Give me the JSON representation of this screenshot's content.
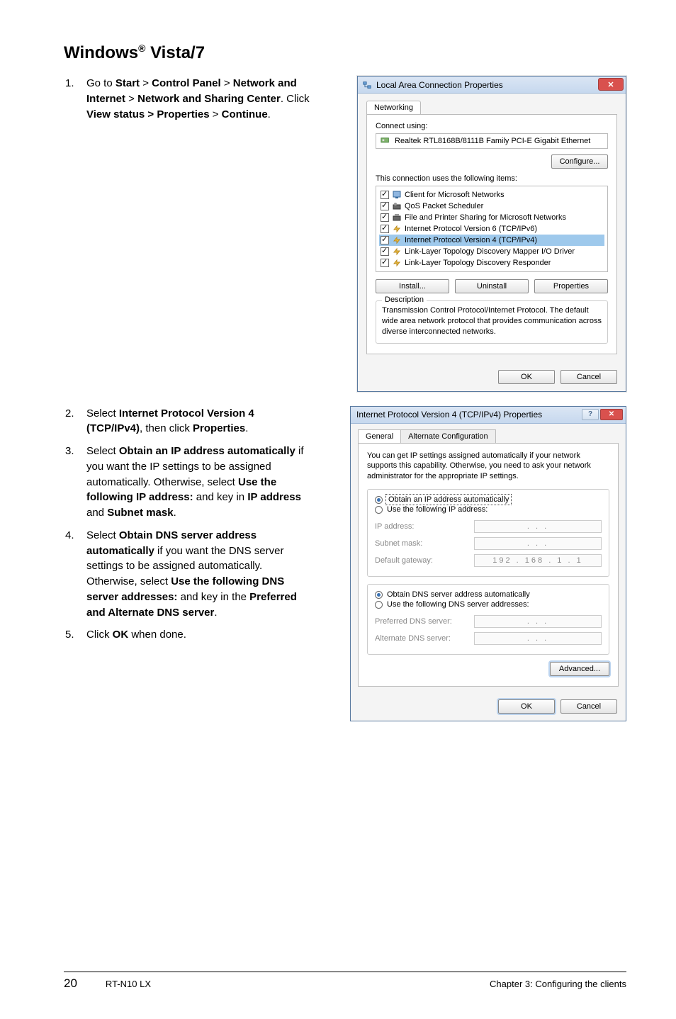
{
  "heading": {
    "prefix": "Windows",
    "suffix": " Vista/7"
  },
  "steps_block1": [
    "Go to <b>Start</b> > <b>Control Panel</b> > <b>Network and Internet</b> > <b>Network and Sharing Center</b>. Click <b>View status > Properties</b> > <b>Continue</b>."
  ],
  "steps_block2": [
    "Select <b>Internet Protocol Version 4 (TCP/IPv4)</b>, then click <b>Properties</b>.",
    "Select <b>Obtain an IP address automatically</b> if you want the IP settings to be assigned automatically. Otherwise, select <b>Use the following IP address:</b> and key in <b>IP address</b> and <b>Subnet mask</b>.",
    "Select <b>Obtain DNS server address automatically</b> if you want the DNS server settings to be assigned automatically. Otherwise, select <b>Use the following DNS server addresses:</b> and key in the <b>Preferred and Alternate DNS server</b>.",
    "Click <b>OK</b> when done."
  ],
  "dlg1": {
    "title": "Local Area Connection Properties",
    "tab": "Networking",
    "connect_using": "Connect using:",
    "adapter": "Realtek RTL8168B/8111B Family PCI-E Gigabit Ethernet",
    "configure_btn": "Configure...",
    "uses_label": "This connection uses the following items:",
    "items": [
      {
        "label": "Client for Microsoft Networks",
        "selected": false
      },
      {
        "label": "QoS Packet Scheduler",
        "selected": false
      },
      {
        "label": "File and Printer Sharing for Microsoft Networks",
        "selected": false
      },
      {
        "label": "Internet Protocol Version 6 (TCP/IPv6)",
        "selected": false
      },
      {
        "label": "Internet Protocol Version 4 (TCP/IPv4)",
        "selected": true
      },
      {
        "label": "Link-Layer Topology Discovery Mapper I/O Driver",
        "selected": false
      },
      {
        "label": "Link-Layer Topology Discovery Responder",
        "selected": false
      }
    ],
    "install_btn": "Install...",
    "uninstall_btn": "Uninstall",
    "properties_btn": "Properties",
    "desc_legend": "Description",
    "desc_text": "Transmission Control Protocol/Internet Protocol. The default wide area network protocol that provides communication across diverse interconnected networks.",
    "ok_btn": "OK",
    "cancel_btn": "Cancel"
  },
  "dlg2": {
    "title": "Internet Protocol Version 4 (TCP/IPv4) Properties",
    "tab_general": "General",
    "tab_alt": "Alternate Configuration",
    "intro": "You can get IP settings assigned automatically if your network supports this capability. Otherwise, you need to ask your network administrator for the appropriate IP settings.",
    "radio_obtain_ip": "Obtain an IP address automatically",
    "radio_use_ip": "Use the following IP address:",
    "ip_address_lbl": "IP address:",
    "subnet_lbl": "Subnet mask:",
    "gateway_lbl": "Default gateway:",
    "gateway_val": "192 . 168 .  1  .  1",
    "radio_obtain_dns": "Obtain DNS server address automatically",
    "radio_use_dns": "Use the following DNS server addresses:",
    "pref_dns_lbl": "Preferred DNS server:",
    "alt_dns_lbl": "Alternate DNS server:",
    "advanced_btn": "Advanced...",
    "ok_btn": "OK",
    "cancel_btn": "Cancel",
    "dots": ".     .     ."
  },
  "footer": {
    "page": "20",
    "product": "RT-N10 LX",
    "chapter": "Chapter 3: Configuring the clients"
  },
  "colors": {
    "title_grad_top": "#dbe6f4",
    "title_grad_bot": "#c6d8ee",
    "close_red": "#d9514e",
    "highlight_blue": "#9ec9ec"
  },
  "icons": {
    "network": "<svg viewBox='0 0 16 16'><rect x='2' y='3' width='5' height='4' fill='#6aa0d8' stroke='#336699'/><rect x='9' y='9' width='5' height='4' fill='#6aa0d8' stroke='#336699'/><path d='M4.5 7 V11 H9' stroke='#336699' fill='none'/></svg>",
    "nic": "<svg viewBox='0 0 16 12'><rect x='1' y='2' width='12' height='7' fill='#7fb36b' stroke='#46803a'/><rect x='3' y='4' width='3' height='3' fill='#ddd'/></svg>",
    "client": "<svg viewBox='0 0 14 14'><rect x='2' y='2' width='10' height='8' fill='#8fb6e0' stroke='#336699'/><rect x='5' y='10' width='4' height='2' fill='#336699'/></svg>",
    "qos": "<svg viewBox='0 0 14 14'><rect x='2' y='5' width='10' height='6' fill='#666' stroke='#333'/><circle cx='5' cy='4' r='2' fill='#999'/></svg>",
    "file": "<svg viewBox='0 0 14 14'><rect x='2' y='5' width='10' height='6' fill='#666' stroke='#333'/><rect x='4' y='2' width='6' height='3' fill='#999'/></svg>",
    "proto": "<svg viewBox='0 0 14 14'><path d='M3 8 L7 3 L7 6 L11 6 L7 11 L7 8 Z' fill='#f0c141' stroke='#b8881f'/></svg>"
  }
}
